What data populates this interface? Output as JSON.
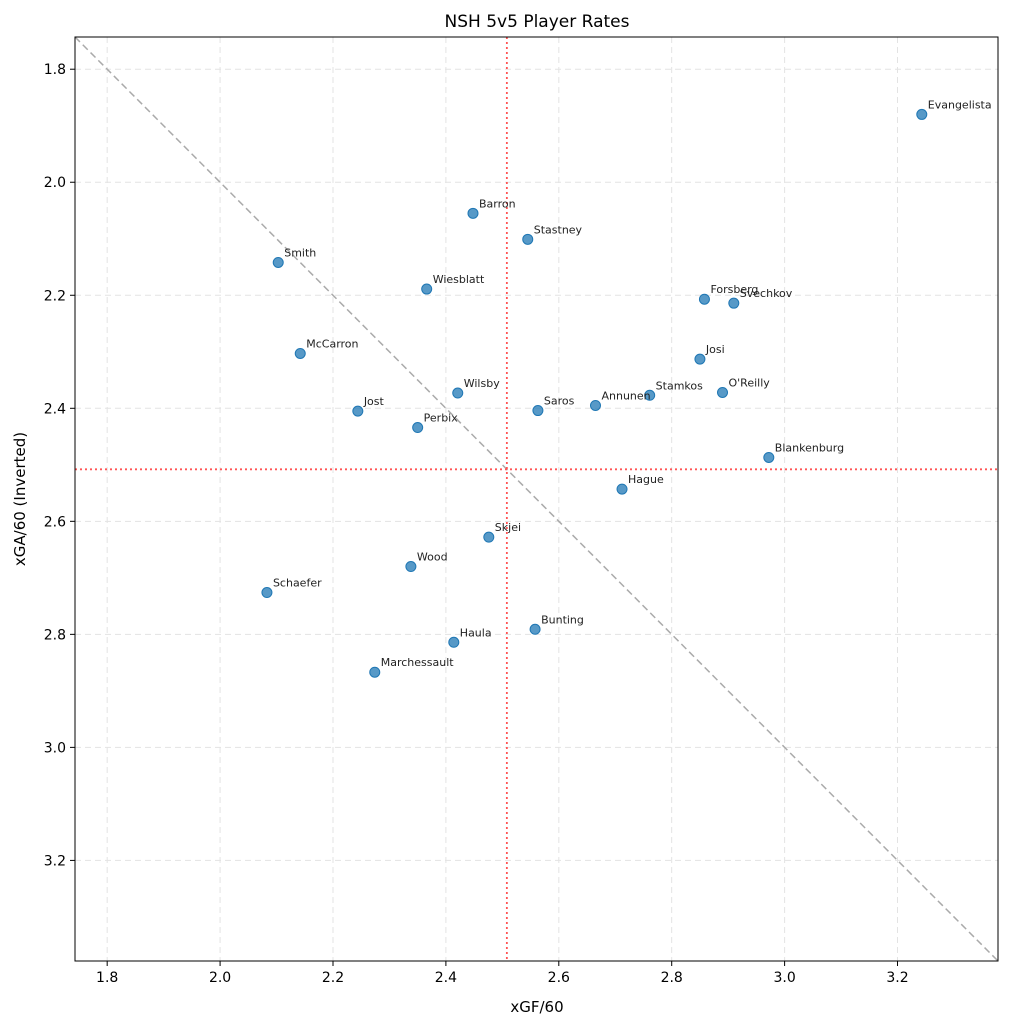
{
  "chart_data": {
    "type": "scatter",
    "title": "NSH 5v5 Player Rates",
    "xlabel": "xGF/60",
    "ylabel": "xGA/60 (Inverted)",
    "xlim": [
      1.743,
      3.378
    ],
    "ylim": [
      3.378,
      1.743
    ],
    "y_inverted": true,
    "grid": true,
    "xticks": [
      "1.8",
      "2.0",
      "2.2",
      "2.4",
      "2.6",
      "2.8",
      "3.0",
      "3.2"
    ],
    "yticks": [
      "1.8",
      "2.0",
      "2.2",
      "2.4",
      "2.6",
      "2.8",
      "3.0",
      "3.2"
    ],
    "point_color": "#1f77b4",
    "reference_lines": {
      "vertical_x": 2.508,
      "horizontal_y": 2.508,
      "mean_line_color": "#ff5555",
      "diagonal": "y = x",
      "diagonal_color": "#aaaaaa"
    },
    "points": [
      {
        "name": "Evangelista",
        "x": 3.243,
        "y": 1.88
      },
      {
        "name": "Barron",
        "x": 2.448,
        "y": 2.055
      },
      {
        "name": "Stastney",
        "x": 2.545,
        "y": 2.101
      },
      {
        "name": "Smith",
        "x": 2.103,
        "y": 2.142
      },
      {
        "name": "Wiesblatt",
        "x": 2.366,
        "y": 2.189
      },
      {
        "name": "Forsberg",
        "x": 2.858,
        "y": 2.207
      },
      {
        "name": "Svechkov",
        "x": 2.91,
        "y": 2.214
      },
      {
        "name": "McCarron",
        "x": 2.142,
        "y": 2.303
      },
      {
        "name": "Josi",
        "x": 2.85,
        "y": 2.313
      },
      {
        "name": "Wilsby",
        "x": 2.421,
        "y": 2.373
      },
      {
        "name": "Stamkos",
        "x": 2.761,
        "y": 2.377
      },
      {
        "name": "O'Reilly",
        "x": 2.89,
        "y": 2.372
      },
      {
        "name": "Annunen",
        "x": 2.665,
        "y": 2.395
      },
      {
        "name": "Saros",
        "x": 2.563,
        "y": 2.404
      },
      {
        "name": "Jost",
        "x": 2.244,
        "y": 2.405
      },
      {
        "name": "Perbix",
        "x": 2.35,
        "y": 2.434
      },
      {
        "name": "Blankenburg",
        "x": 2.972,
        "y": 2.487
      },
      {
        "name": "Hague",
        "x": 2.712,
        "y": 2.543
      },
      {
        "name": "Skjei",
        "x": 2.476,
        "y": 2.628
      },
      {
        "name": "Wood",
        "x": 2.338,
        "y": 2.68
      },
      {
        "name": "Schaefer",
        "x": 2.083,
        "y": 2.726
      },
      {
        "name": "Bunting",
        "x": 2.558,
        "y": 2.791
      },
      {
        "name": "Haula",
        "x": 2.414,
        "y": 2.814
      },
      {
        "name": "Marchessault",
        "x": 2.274,
        "y": 2.867
      }
    ]
  }
}
